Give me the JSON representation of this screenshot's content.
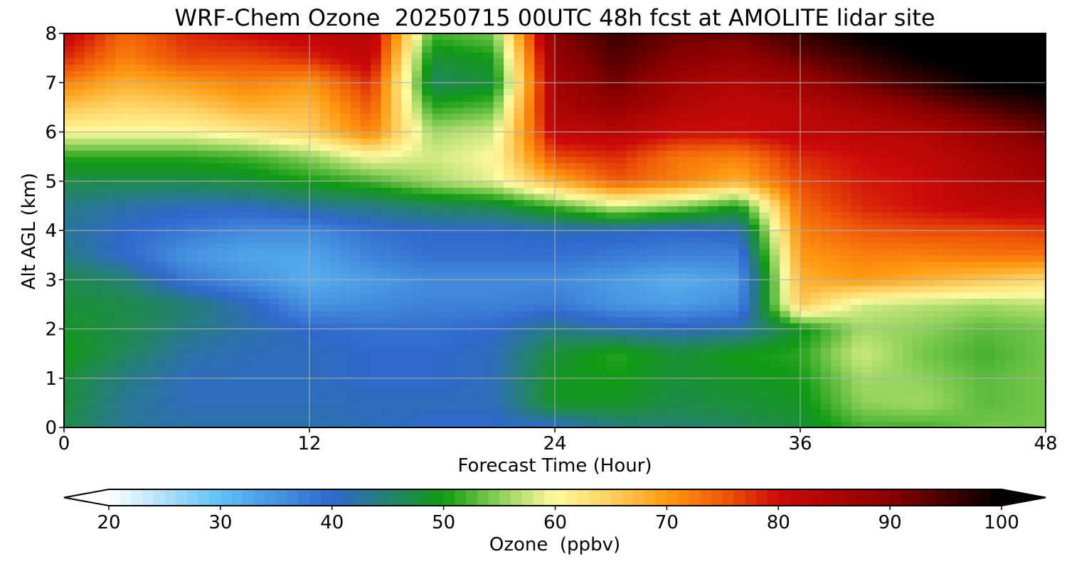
{
  "chart_data": {
    "type": "heatmap",
    "title": "WRF-Chem Ozone  20250715 00UTC 48h fcst at AMOLITE lidar site",
    "xlabel": "Forecast Time (Hour)",
    "ylabel": "Alt AGL (km)",
    "xlim": [
      0,
      48
    ],
    "ylim": [
      0,
      8
    ],
    "x_ticks": [
      0,
      12,
      24,
      36,
      48
    ],
    "y_ticks": [
      0,
      1,
      2,
      3,
      4,
      5,
      6,
      7,
      8
    ],
    "grid": true,
    "x": [
      0,
      3,
      6,
      9,
      12,
      15,
      18,
      21,
      24,
      27,
      30,
      33,
      36,
      39,
      42,
      45,
      48
    ],
    "y": [
      0,
      0.5,
      1,
      1.5,
      2,
      2.5,
      3,
      3.5,
      4,
      4.5,
      5,
      5.5,
      6,
      6.5,
      7,
      7.5,
      8
    ],
    "z": [
      [
        47,
        43,
        42,
        42,
        42,
        41,
        40,
        40,
        40,
        44,
        45,
        46,
        48,
        52,
        52,
        54,
        54
      ],
      [
        48,
        43,
        41,
        41,
        41,
        41,
        41,
        41,
        49,
        49,
        47,
        48,
        49,
        55,
        56,
        53,
        54
      ],
      [
        48,
        44,
        41,
        41,
        41,
        40,
        40,
        41,
        49,
        50,
        48,
        49,
        50,
        56,
        55,
        53,
        54
      ],
      [
        50,
        46,
        42,
        41,
        41,
        40,
        40,
        41,
        48,
        51,
        48,
        50,
        51,
        58,
        54,
        52,
        54
      ],
      [
        49,
        47,
        44,
        42,
        40,
        39,
        39,
        40,
        44,
        42,
        41,
        42,
        49,
        56,
        55,
        53,
        54
      ],
      [
        48,
        47,
        45,
        41,
        35,
        36,
        37,
        37,
        38,
        35,
        34,
        36,
        66,
        58,
        57,
        56,
        57
      ],
      [
        47,
        45,
        38,
        35,
        32,
        34,
        36,
        36,
        36,
        34,
        32,
        34,
        68,
        70,
        68,
        66,
        64
      ],
      [
        44,
        40,
        35,
        33,
        33,
        37,
        39,
        39,
        39,
        38,
        37,
        37,
        70,
        72,
        72,
        73,
        73
      ],
      [
        43,
        40,
        38,
        36,
        36,
        39,
        40,
        40,
        41,
        41,
        40,
        41,
        72,
        75,
        76,
        76,
        77
      ],
      [
        44,
        42,
        41,
        41,
        43,
        44,
        46,
        47,
        52,
        58,
        55,
        50,
        74,
        78,
        80,
        82,
        83
      ],
      [
        47,
        47,
        47,
        48,
        50,
        52,
        56,
        59,
        68,
        75,
        72,
        68,
        76,
        79,
        80,
        84,
        86
      ],
      [
        51,
        51,
        51,
        52,
        55,
        60,
        58,
        60,
        76,
        78,
        73,
        72,
        78,
        80,
        82,
        85,
        88
      ],
      [
        60,
        60,
        60,
        62,
        65,
        72,
        56,
        58,
        82,
        83,
        80,
        80,
        82,
        83,
        84,
        88,
        92
      ],
      [
        66,
        64,
        65,
        68,
        67,
        75,
        51,
        53,
        85,
        88,
        84,
        82,
        83,
        86,
        90,
        94,
        97
      ],
      [
        72,
        68,
        70,
        72,
        70,
        78,
        46,
        48,
        86,
        92,
        86,
        84,
        87,
        92,
        96,
        100,
        101
      ],
      [
        78,
        72,
        76,
        76,
        78,
        82,
        48,
        50,
        88,
        94,
        90,
        88,
        92,
        96,
        100,
        101,
        102
      ],
      [
        82,
        74,
        78,
        80,
        82,
        84,
        52,
        54,
        90,
        96,
        92,
        92,
        96,
        100,
        102,
        102,
        103
      ]
    ],
    "colorbar": {
      "label": "Ozone  (ppbv)",
      "min": 20,
      "max": 100,
      "ticks": [
        20,
        30,
        40,
        50,
        60,
        70,
        80,
        90,
        100
      ],
      "extend": "both",
      "colors": [
        {
          "v": 20,
          "c": "#ffffff"
        },
        {
          "v": 30,
          "c": "#60c0f4"
        },
        {
          "v": 40,
          "c": "#3068cc"
        },
        {
          "v": 47,
          "c": "#1f8a4a"
        },
        {
          "v": 50,
          "c": "#119a14"
        },
        {
          "v": 55,
          "c": "#8ed05a"
        },
        {
          "v": 60,
          "c": "#fffaa0"
        },
        {
          "v": 65,
          "c": "#ffd060"
        },
        {
          "v": 70,
          "c": "#ff9a12"
        },
        {
          "v": 75,
          "c": "#f05a08"
        },
        {
          "v": 80,
          "c": "#cc0a0a"
        },
        {
          "v": 90,
          "c": "#8a0000"
        },
        {
          "v": 100,
          "c": "#000000"
        }
      ]
    }
  }
}
